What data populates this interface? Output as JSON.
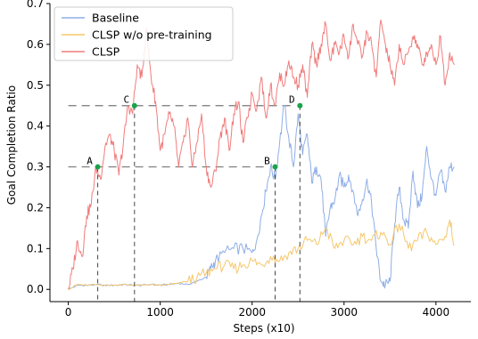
{
  "chart_data": {
    "type": "line",
    "title": "",
    "xlabel": "Steps (x10)",
    "ylabel": "Goal Completion Ratio",
    "xlim": [
      -200,
      4380
    ],
    "ylim": [
      -0.03,
      0.7
    ],
    "xticks": [
      0,
      1000,
      2000,
      3000,
      4000
    ],
    "yticks": [
      0.0,
      0.1,
      0.2,
      0.3,
      0.4,
      0.5,
      0.6,
      0.7
    ],
    "xtick_labels": [
      "0",
      "1000",
      "2000",
      "3000",
      "4000"
    ],
    "ytick_labels": [
      "0.0",
      "0.1",
      "0.2",
      "0.3",
      "0.4",
      "0.5",
      "0.6",
      "0.7"
    ],
    "grid": false,
    "legend": {
      "placement": "top-left"
    },
    "series": [
      {
        "name": "Baseline",
        "color": "#8faee6",
        "x": [
          0,
          100,
          200,
          300,
          400,
          500,
          600,
          700,
          800,
          900,
          1000,
          1100,
          1200,
          1300,
          1400,
          1500,
          1550,
          1600,
          1700,
          1800,
          1900,
          2000,
          2050,
          2100,
          2150,
          2200,
          2250,
          2300,
          2350,
          2400,
          2450,
          2500,
          2550,
          2600,
          2650,
          2700,
          2750,
          2800,
          2850,
          2900,
          2950,
          3000,
          3050,
          3100,
          3150,
          3200,
          3250,
          3300,
          3350,
          3400,
          3450,
          3500,
          3550,
          3600,
          3650,
          3700,
          3750,
          3800,
          3850,
          3900,
          3950,
          4000,
          4050,
          4100,
          4150,
          4200
        ],
        "y": [
          0.0,
          0.01,
          0.01,
          0.012,
          0.01,
          0.01,
          0.012,
          0.01,
          0.01,
          0.012,
          0.01,
          0.012,
          0.015,
          0.012,
          0.02,
          0.03,
          0.05,
          0.07,
          0.09,
          0.1,
          0.1,
          0.09,
          0.12,
          0.18,
          0.24,
          0.3,
          0.27,
          0.36,
          0.45,
          0.37,
          0.3,
          0.43,
          0.33,
          0.38,
          0.26,
          0.3,
          0.27,
          0.13,
          0.2,
          0.22,
          0.28,
          0.25,
          0.28,
          0.24,
          0.18,
          0.22,
          0.27,
          0.21,
          0.1,
          0.02,
          0.01,
          0.02,
          0.16,
          0.25,
          0.17,
          0.15,
          0.29,
          0.2,
          0.23,
          0.35,
          0.27,
          0.23,
          0.29,
          0.24,
          0.3,
          0.3
        ]
      },
      {
        "name": "CLSP w/o pre-training",
        "color": "#f6c76c",
        "x": [
          0,
          100,
          200,
          300,
          400,
          500,
          600,
          700,
          800,
          900,
          1000,
          1100,
          1200,
          1300,
          1400,
          1500,
          1600,
          1700,
          1800,
          1900,
          2000,
          2100,
          2200,
          2300,
          2400,
          2500,
          2600,
          2700,
          2800,
          2900,
          3000,
          3100,
          3200,
          3300,
          3400,
          3500,
          3600,
          3700,
          3800,
          3900,
          4000,
          4100,
          4150,
          4200
        ],
        "y": [
          0.0,
          0.012,
          0.01,
          0.012,
          0.01,
          0.01,
          0.012,
          0.01,
          0.01,
          0.012,
          0.01,
          0.012,
          0.015,
          0.02,
          0.03,
          0.04,
          0.05,
          0.06,
          0.05,
          0.06,
          0.07,
          0.06,
          0.08,
          0.07,
          0.09,
          0.1,
          0.12,
          0.11,
          0.15,
          0.1,
          0.12,
          0.11,
          0.13,
          0.12,
          0.14,
          0.11,
          0.16,
          0.1,
          0.12,
          0.14,
          0.11,
          0.13,
          0.17,
          0.11
        ]
      },
      {
        "name": "CLSP",
        "color": "#f07c7c",
        "x": [
          0,
          50,
          100,
          150,
          200,
          250,
          300,
          350,
          400,
          450,
          500,
          550,
          600,
          650,
          700,
          750,
          800,
          850,
          900,
          950,
          1000,
          1050,
          1100,
          1150,
          1200,
          1250,
          1300,
          1350,
          1400,
          1450,
          1500,
          1550,
          1600,
          1650,
          1700,
          1750,
          1800,
          1850,
          1900,
          1950,
          2000,
          2050,
          2100,
          2150,
          2200,
          2250,
          2300,
          2350,
          2400,
          2450,
          2500,
          2550,
          2600,
          2650,
          2700,
          2750,
          2800,
          2850,
          2900,
          2950,
          3000,
          3050,
          3100,
          3150,
          3200,
          3250,
          3300,
          3350,
          3400,
          3450,
          3500,
          3550,
          3600,
          3650,
          3700,
          3750,
          3800,
          3850,
          3900,
          3950,
          4000,
          4050,
          4100,
          4150,
          4200
        ],
        "y": [
          0.0,
          0.05,
          0.12,
          0.08,
          0.18,
          0.21,
          0.3,
          0.27,
          0.35,
          0.38,
          0.34,
          0.28,
          0.36,
          0.45,
          0.43,
          0.55,
          0.52,
          0.64,
          0.52,
          0.46,
          0.34,
          0.38,
          0.43,
          0.4,
          0.3,
          0.36,
          0.42,
          0.3,
          0.36,
          0.43,
          0.3,
          0.25,
          0.29,
          0.37,
          0.42,
          0.34,
          0.43,
          0.46,
          0.36,
          0.42,
          0.48,
          0.44,
          0.52,
          0.42,
          0.5,
          0.45,
          0.53,
          0.5,
          0.56,
          0.52,
          0.5,
          0.55,
          0.47,
          0.6,
          0.55,
          0.6,
          0.65,
          0.56,
          0.6,
          0.58,
          0.62,
          0.57,
          0.65,
          0.6,
          0.57,
          0.63,
          0.6,
          0.52,
          0.66,
          0.6,
          0.55,
          0.5,
          0.6,
          0.55,
          0.58,
          0.62,
          0.6,
          0.55,
          0.58,
          0.6,
          0.55,
          0.62,
          0.5,
          0.58,
          0.55
        ]
      }
    ],
    "reference_lines": [
      {
        "y": 0.3,
        "x_start": 0,
        "x_end": 2150
      },
      {
        "y": 0.45,
        "x_start": 0,
        "x_end": 2450
      }
    ],
    "annotations": [
      {
        "label": "A",
        "x": 320,
        "y": 0.3,
        "color": "#1aa34a"
      },
      {
        "label": "B",
        "x": 2250,
        "y": 0.3,
        "color": "#1aa34a"
      },
      {
        "label": "C",
        "x": 720,
        "y": 0.45,
        "color": "#1aa34a"
      },
      {
        "label": "D",
        "x": 2520,
        "y": 0.45,
        "color": "#1aa34a"
      }
    ]
  }
}
